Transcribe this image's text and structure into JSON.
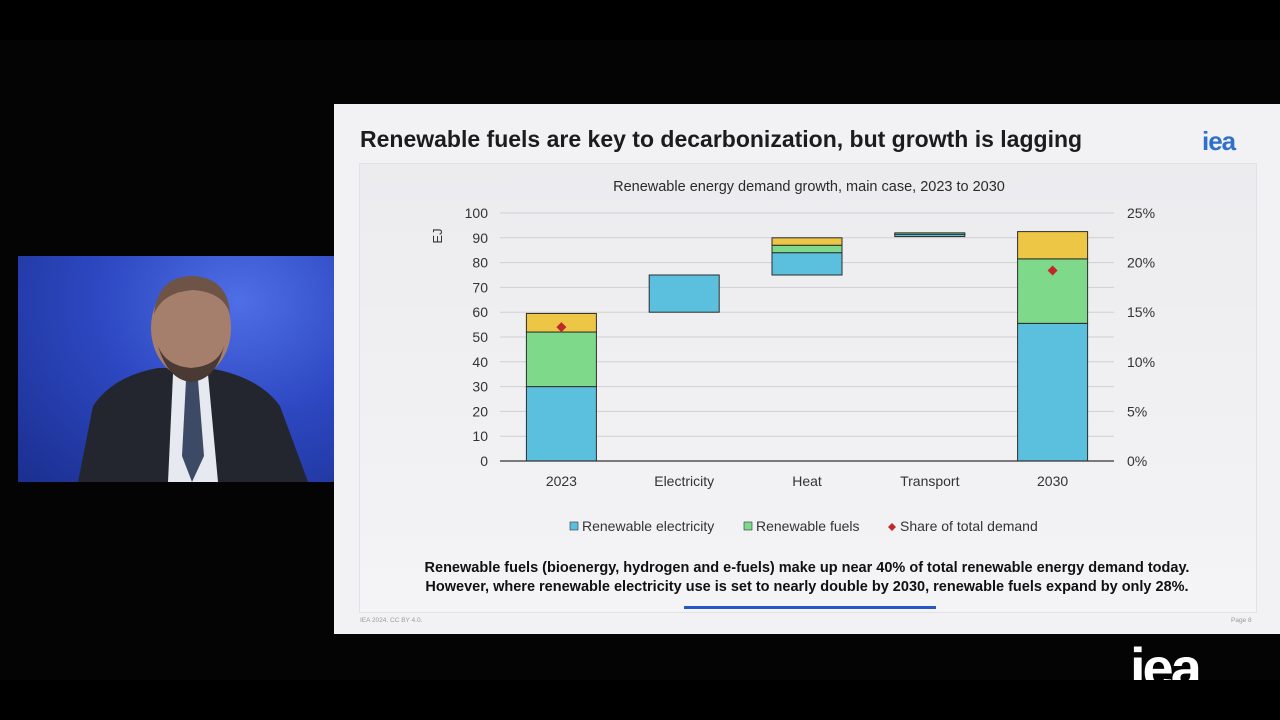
{
  "slide": {
    "title": "Renewable fuels are key to decarbonization, but growth is lagging",
    "logo": "iea",
    "caption_line1": "Renewable fuels (bioenergy, hydrogen and e-fuels) make up near 40% of total renewable energy demand today.",
    "caption_line2": "However, where renewable electricity use is set to nearly double by 2030, renewable fuels expand by only 28%.",
    "footer_left": "IEA 2024. CC BY 4.0.",
    "footer_right": "Page 8"
  },
  "watermark": "iea",
  "colors": {
    "renewable_electricity": "#5bc0de",
    "renewable_fuels": "#7fd98a",
    "third_segment": "#ecc644",
    "share_marker": "#c0282d",
    "iea_blue": "#2f71c9"
  },
  "chart_data": {
    "type": "bar",
    "subtype": "waterfall",
    "title": "Renewable energy demand growth, main case, 2023 to 2030",
    "ylabel": "EJ",
    "ylim": [
      0,
      100
    ],
    "yticks": [
      0,
      10,
      20,
      30,
      40,
      50,
      60,
      70,
      80,
      90,
      100
    ],
    "y2lim": [
      0,
      25
    ],
    "y2ticks": [
      "0%",
      "5%",
      "10%",
      "15%",
      "20%",
      "25%"
    ],
    "categories": [
      "2023",
      "Electricity",
      "Heat",
      "Transport",
      "2030"
    ],
    "series": [
      {
        "name": "Renewable electricity",
        "values": [
          [
            0,
            30
          ],
          [
            60,
            75
          ],
          [
            75,
            84
          ],
          [
            90.5,
            91.5
          ],
          [
            0,
            55.5
          ]
        ]
      },
      {
        "name": "Renewable fuels",
        "values": [
          [
            30,
            52
          ],
          null,
          [
            84,
            87
          ],
          [
            91.5,
            92
          ],
          [
            55.5,
            81.5
          ]
        ]
      },
      {
        "values": [
          [
            52,
            59.5
          ],
          null,
          [
            87,
            90
          ],
          null,
          [
            81.5,
            92.5
          ]
        ]
      }
    ],
    "share_of_total_demand": {
      "name": "Share of total demand",
      "values": [
        13.5,
        null,
        null,
        null,
        19.2
      ]
    },
    "legend": [
      "Renewable electricity",
      "Renewable fuels",
      "Share of total demand"
    ],
    "legend_position": "bottom",
    "grid": true
  }
}
